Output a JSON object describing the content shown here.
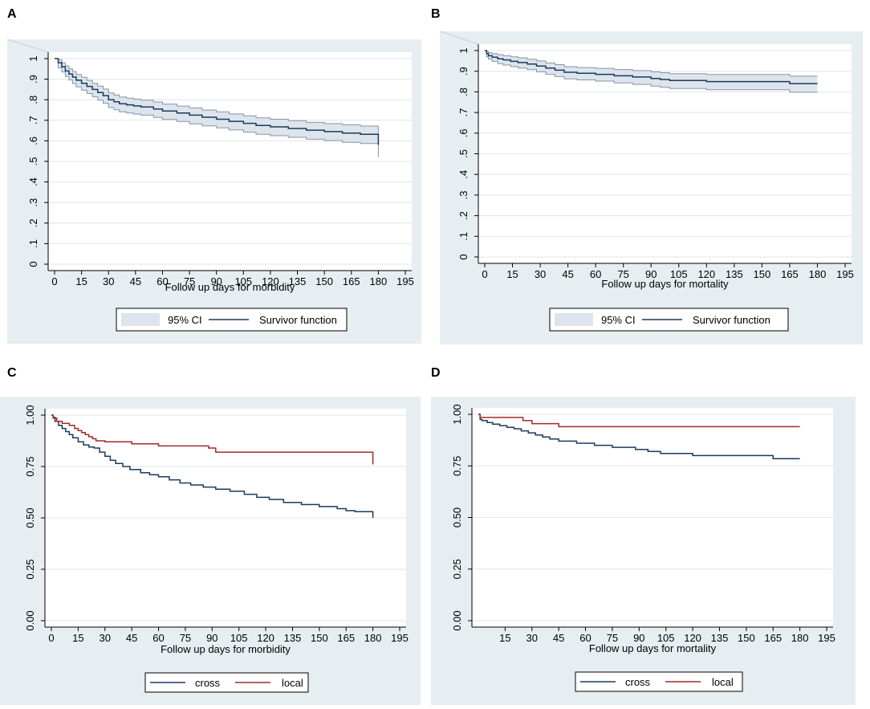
{
  "panels": [
    {
      "label": "A"
    },
    {
      "label": "B"
    },
    {
      "label": "C"
    },
    {
      "label": "D"
    }
  ],
  "colors": {
    "background": "#e6eef2",
    "plot": "#ffffff",
    "grid": "#dfe6ea",
    "navy": "#1a3b5c",
    "red": "#a42a2a",
    "ci_fill": "#dde4ec",
    "ci_edge": "#8795a8"
  },
  "chart_data": [
    {
      "type": "line",
      "panel": "A",
      "xlabel": "Follow up days for morbidity",
      "ylabel": "",
      "xlim": [
        0,
        195
      ],
      "ylim": [
        0,
        1
      ],
      "x_ticks": [
        0,
        15,
        30,
        45,
        60,
        75,
        90,
        105,
        120,
        135,
        150,
        165,
        180,
        195
      ],
      "y_ticks": [
        0,
        0.1,
        0.2,
        0.3,
        0.4,
        0.5,
        0.6,
        0.7,
        0.8,
        0.9,
        1
      ],
      "y_tick_labels": [
        "0",
        ".1",
        ".2",
        ".3",
        ".4",
        ".5",
        ".6",
        ".7",
        ".8",
        ".9",
        "1"
      ],
      "y_tick_rotated": true,
      "legend": [
        "95% CI",
        "Survivor function"
      ],
      "series": [
        {
          "name": "Survivor function",
          "kind": "step",
          "x": [
            0,
            2,
            4,
            6,
            8,
            10,
            12,
            15,
            18,
            21,
            24,
            27,
            30,
            33,
            36,
            40,
            44,
            48,
            55,
            60,
            68,
            75,
            82,
            90,
            97,
            105,
            112,
            120,
            130,
            140,
            150,
            160,
            170,
            180
          ],
          "y": [
            1.0,
            0.98,
            0.96,
            0.94,
            0.925,
            0.91,
            0.895,
            0.88,
            0.865,
            0.85,
            0.835,
            0.82,
            0.8,
            0.79,
            0.78,
            0.775,
            0.77,
            0.765,
            0.755,
            0.745,
            0.735,
            0.725,
            0.715,
            0.705,
            0.695,
            0.685,
            0.675,
            0.668,
            0.66,
            0.652,
            0.645,
            0.638,
            0.632,
            0.58
          ]
        },
        {
          "name": "95% CI upper",
          "kind": "step",
          "x": [
            0,
            2,
            4,
            6,
            8,
            10,
            12,
            15,
            18,
            21,
            24,
            27,
            30,
            33,
            36,
            40,
            44,
            48,
            55,
            60,
            68,
            75,
            82,
            90,
            97,
            105,
            112,
            120,
            130,
            140,
            150,
            160,
            170,
            180
          ],
          "y": [
            1.0,
            0.995,
            0.98,
            0.965,
            0.95,
            0.937,
            0.923,
            0.909,
            0.894,
            0.88,
            0.866,
            0.852,
            0.833,
            0.823,
            0.813,
            0.808,
            0.803,
            0.798,
            0.789,
            0.779,
            0.769,
            0.76,
            0.75,
            0.741,
            0.731,
            0.722,
            0.712,
            0.705,
            0.698,
            0.69,
            0.684,
            0.678,
            0.672,
            0.622
          ]
        },
        {
          "name": "95% CI lower",
          "kind": "step",
          "x": [
            0,
            2,
            4,
            6,
            8,
            10,
            12,
            15,
            18,
            21,
            24,
            27,
            30,
            33,
            36,
            40,
            44,
            48,
            55,
            60,
            68,
            75,
            82,
            90,
            97,
            105,
            112,
            120,
            130,
            140,
            150,
            160,
            170,
            180
          ],
          "y": [
            1.0,
            0.955,
            0.935,
            0.913,
            0.896,
            0.879,
            0.863,
            0.847,
            0.83,
            0.814,
            0.798,
            0.783,
            0.762,
            0.751,
            0.741,
            0.735,
            0.73,
            0.725,
            0.714,
            0.704,
            0.694,
            0.683,
            0.673,
            0.663,
            0.653,
            0.642,
            0.632,
            0.625,
            0.617,
            0.608,
            0.601,
            0.593,
            0.587,
            0.52
          ]
        }
      ]
    },
    {
      "type": "line",
      "panel": "B",
      "xlabel": "Follow up days for mortality",
      "ylabel": "",
      "xlim": [
        0,
        195
      ],
      "ylim": [
        0,
        1
      ],
      "x_ticks": [
        0,
        15,
        30,
        45,
        60,
        75,
        90,
        105,
        120,
        135,
        150,
        165,
        180,
        195
      ],
      "y_ticks": [
        0,
        0.1,
        0.2,
        0.3,
        0.4,
        0.5,
        0.6,
        0.7,
        0.8,
        0.9,
        1
      ],
      "y_tick_labels": [
        "0",
        ".1",
        ".2",
        ".3",
        ".4",
        ".5",
        ".6",
        ".7",
        ".8",
        ".9",
        "1"
      ],
      "y_tick_rotated": true,
      "legend": [
        "95% CI",
        "Survivor function"
      ],
      "series": [
        {
          "name": "Survivor function",
          "kind": "step",
          "x": [
            0,
            1,
            2,
            4,
            7,
            10,
            14,
            18,
            23,
            28,
            33,
            38,
            43,
            50,
            60,
            70,
            80,
            90,
            95,
            100,
            110,
            120,
            130,
            140,
            150,
            160,
            165,
            170,
            180
          ],
          "y": [
            1.0,
            0.985,
            0.975,
            0.968,
            0.96,
            0.955,
            0.948,
            0.942,
            0.935,
            0.925,
            0.915,
            0.905,
            0.895,
            0.89,
            0.885,
            0.878,
            0.872,
            0.865,
            0.86,
            0.855,
            0.855,
            0.85,
            0.85,
            0.85,
            0.85,
            0.85,
            0.84,
            0.84,
            0.84
          ]
        },
        {
          "name": "95% CI upper",
          "kind": "step",
          "x": [
            0,
            1,
            2,
            4,
            7,
            10,
            14,
            18,
            23,
            28,
            33,
            38,
            43,
            50,
            60,
            70,
            80,
            90,
            95,
            100,
            110,
            120,
            130,
            140,
            150,
            160,
            165,
            170,
            180
          ],
          "y": [
            1.0,
            0.995,
            0.99,
            0.985,
            0.98,
            0.975,
            0.97,
            0.965,
            0.958,
            0.95,
            0.94,
            0.932,
            0.922,
            0.918,
            0.914,
            0.908,
            0.903,
            0.897,
            0.893,
            0.888,
            0.888,
            0.884,
            0.884,
            0.884,
            0.884,
            0.884,
            0.876,
            0.876,
            0.876
          ]
        },
        {
          "name": "95% CI lower",
          "kind": "step",
          "x": [
            0,
            1,
            2,
            4,
            7,
            10,
            14,
            18,
            23,
            28,
            33,
            38,
            43,
            50,
            60,
            70,
            80,
            90,
            95,
            100,
            110,
            120,
            130,
            140,
            150,
            160,
            165,
            170,
            180
          ],
          "y": [
            1.0,
            0.97,
            0.958,
            0.948,
            0.937,
            0.93,
            0.922,
            0.915,
            0.908,
            0.897,
            0.885,
            0.874,
            0.863,
            0.858,
            0.852,
            0.843,
            0.836,
            0.828,
            0.822,
            0.816,
            0.816,
            0.81,
            0.81,
            0.81,
            0.81,
            0.81,
            0.798,
            0.798,
            0.798
          ]
        }
      ]
    },
    {
      "type": "line",
      "panel": "C",
      "xlabel": "Follow up days for morbidity",
      "ylabel": "",
      "xlim": [
        0,
        195
      ],
      "ylim": [
        0,
        1
      ],
      "x_ticks": [
        0,
        15,
        30,
        45,
        60,
        75,
        90,
        105,
        120,
        135,
        150,
        165,
        180,
        195
      ],
      "y_ticks": [
        0,
        0.25,
        0.5,
        0.75,
        1
      ],
      "y_tick_labels": [
        "0.00",
        "0.25",
        "0.50",
        "0.75",
        "1.00"
      ],
      "y_tick_rotated": true,
      "legend": [
        "cross",
        "local"
      ],
      "series": [
        {
          "name": "cross",
          "kind": "step",
          "x": [
            0,
            1,
            2,
            4,
            6,
            8,
            10,
            12,
            15,
            18,
            21,
            24,
            27,
            30,
            33,
            36,
            40,
            44,
            50,
            55,
            60,
            66,
            72,
            78,
            85,
            92,
            100,
            108,
            115,
            122,
            130,
            140,
            150,
            160,
            165,
            170,
            180
          ],
          "y": [
            1.0,
            0.99,
            0.97,
            0.95,
            0.935,
            0.92,
            0.905,
            0.89,
            0.87,
            0.855,
            0.845,
            0.84,
            0.82,
            0.8,
            0.78,
            0.765,
            0.75,
            0.735,
            0.72,
            0.71,
            0.7,
            0.685,
            0.67,
            0.66,
            0.65,
            0.64,
            0.63,
            0.615,
            0.6,
            0.59,
            0.575,
            0.565,
            0.555,
            0.545,
            0.535,
            0.53,
            0.5
          ]
        },
        {
          "name": "local",
          "kind": "step",
          "x": [
            0,
            1,
            3,
            6,
            10,
            13,
            15,
            17,
            19,
            21,
            23,
            25,
            30,
            45,
            60,
            88,
            92,
            100,
            180
          ],
          "y": [
            1.0,
            0.985,
            0.97,
            0.96,
            0.95,
            0.935,
            0.925,
            0.915,
            0.905,
            0.895,
            0.885,
            0.875,
            0.87,
            0.86,
            0.85,
            0.84,
            0.82,
            0.82,
            0.76
          ]
        }
      ]
    },
    {
      "type": "line",
      "panel": "D",
      "xlabel": "Follow up days for mortality",
      "ylabel": "",
      "xlim": [
        0,
        195
      ],
      "ylim": [
        0,
        1
      ],
      "x_ticks": [
        15,
        30,
        45,
        60,
        75,
        90,
        105,
        120,
        135,
        150,
        165,
        180,
        195
      ],
      "y_ticks": [
        0,
        0.25,
        0.5,
        0.75,
        1
      ],
      "y_tick_labels": [
        "0.00",
        "0.25",
        "0.50",
        "0.75",
        "1.00"
      ],
      "y_tick_rotated": true,
      "legend": [
        "cross",
        "local"
      ],
      "series": [
        {
          "name": "cross",
          "kind": "step",
          "x": [
            0,
            1,
            2,
            5,
            8,
            12,
            16,
            20,
            24,
            28,
            32,
            36,
            40,
            45,
            55,
            65,
            75,
            88,
            95,
            102,
            110,
            120,
            130,
            140,
            150,
            160,
            165,
            170,
            180
          ],
          "y": [
            1.0,
            0.975,
            0.97,
            0.96,
            0.952,
            0.945,
            0.937,
            0.93,
            0.92,
            0.91,
            0.9,
            0.89,
            0.88,
            0.87,
            0.86,
            0.85,
            0.84,
            0.83,
            0.82,
            0.81,
            0.81,
            0.8,
            0.8,
            0.8,
            0.8,
            0.8,
            0.785,
            0.785,
            0.785
          ]
        },
        {
          "name": "local",
          "kind": "step",
          "x": [
            0,
            1,
            25,
            30,
            45,
            60,
            100,
            150,
            180
          ],
          "y": [
            1.0,
            0.985,
            0.97,
            0.955,
            0.94,
            0.94,
            0.94,
            0.94,
            0.94
          ]
        }
      ]
    }
  ]
}
